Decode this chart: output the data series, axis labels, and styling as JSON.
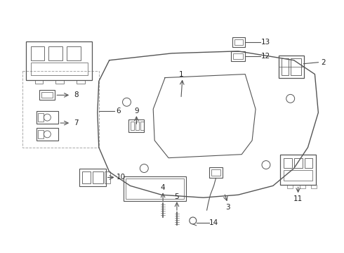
{
  "background_color": "#ffffff",
  "line_color": "#555555",
  "text_color": "#222222"
}
